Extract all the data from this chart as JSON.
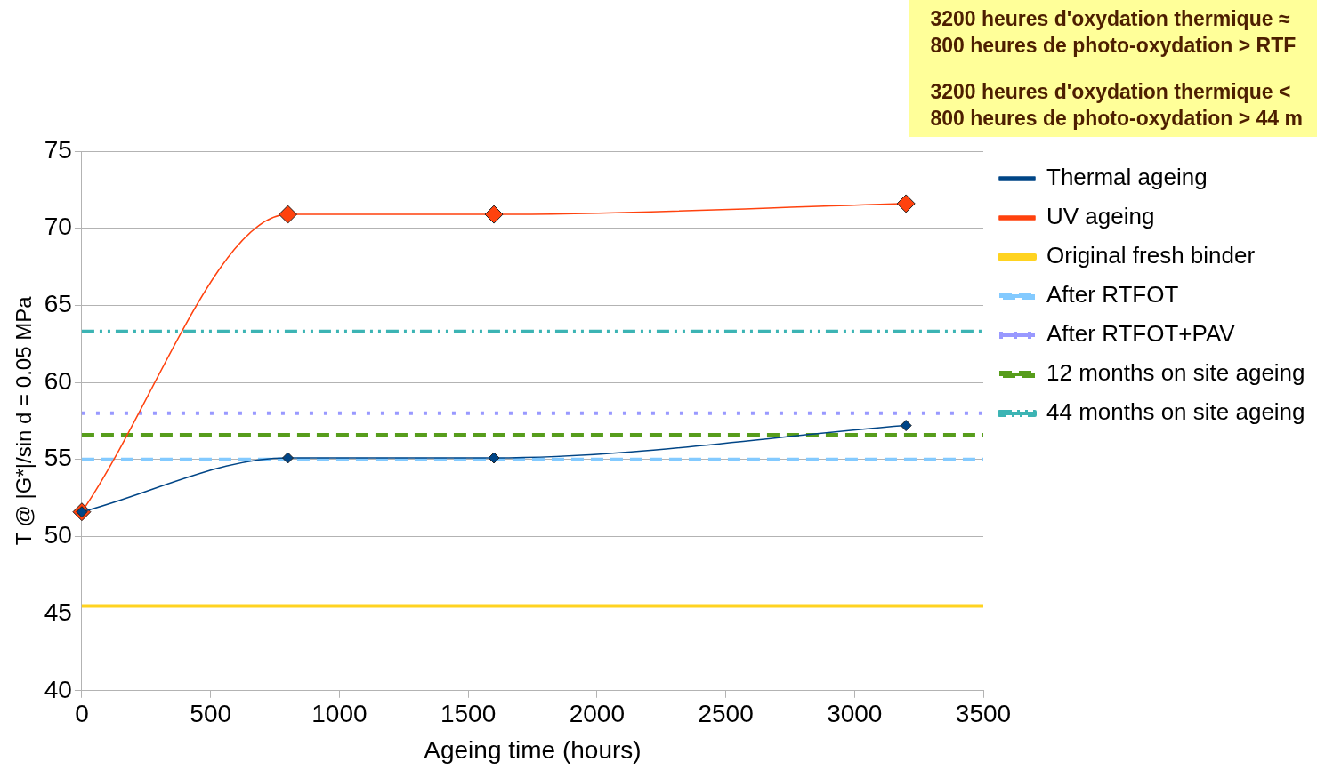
{
  "chart_data": {
    "type": "line",
    "xlabel": "Ageing time (hours)",
    "ylabel": "T @ |G*|/sin d = 0.05 MPa",
    "xlim": [
      0,
      3500
    ],
    "xticks": [
      0,
      500,
      1000,
      1500,
      2000,
      2500,
      3000,
      3500
    ],
    "ylim": [
      40,
      75
    ],
    "yticks": [
      40,
      45,
      50,
      55,
      60,
      65,
      70,
      75
    ],
    "grid": "y",
    "legend": "right",
    "annotations": [
      "3200 heures d'oxydation thermique ≈\n800 heures de photo-oxydation > RTF",
      "3200 heures d'oxydation thermique <\n800 heures de photo-oxydation > 44 m"
    ],
    "series": [
      {
        "name": "Thermal ageing",
        "color": "#004586",
        "x": [
          0,
          800,
          1600,
          3200
        ],
        "values": [
          51.6,
          55.1,
          55.1,
          57.2
        ],
        "marker": "diamond",
        "line_style": "solid"
      },
      {
        "name": "UV ageing",
        "color": "#ff420e",
        "x": [
          0,
          800,
          1600,
          3200
        ],
        "values": [
          51.6,
          70.9,
          70.9,
          71.6
        ],
        "marker": "diamond",
        "line_style": "solid"
      },
      {
        "name": "Original fresh binder",
        "color": "#ffd320",
        "x": [
          0,
          3500
        ],
        "values": [
          45.5,
          45.5
        ],
        "marker": "none",
        "line_style": "solid"
      },
      {
        "name": "After RTFOT",
        "color": "#83caff",
        "x": [
          0,
          3500
        ],
        "values": [
          55.0,
          55.0
        ],
        "marker": "none",
        "line_style": "dashed"
      },
      {
        "name": "After RTFOT+PAV",
        "color": "#9999ff",
        "x": [
          0,
          3500
        ],
        "values": [
          58.0,
          58.0
        ],
        "marker": "none",
        "line_style": "dotted"
      },
      {
        "name": "12 months on site ageing",
        "color": "#579d1c",
        "x": [
          0,
          3500
        ],
        "values": [
          56.6,
          56.6
        ],
        "marker": "none",
        "line_style": "dashed"
      },
      {
        "name": "44 months on site ageing",
        "color": "#3cb4b4",
        "x": [
          0,
          3500
        ],
        "values": [
          63.3,
          63.3
        ],
        "marker": "none",
        "line_style": "dashdot"
      }
    ]
  }
}
